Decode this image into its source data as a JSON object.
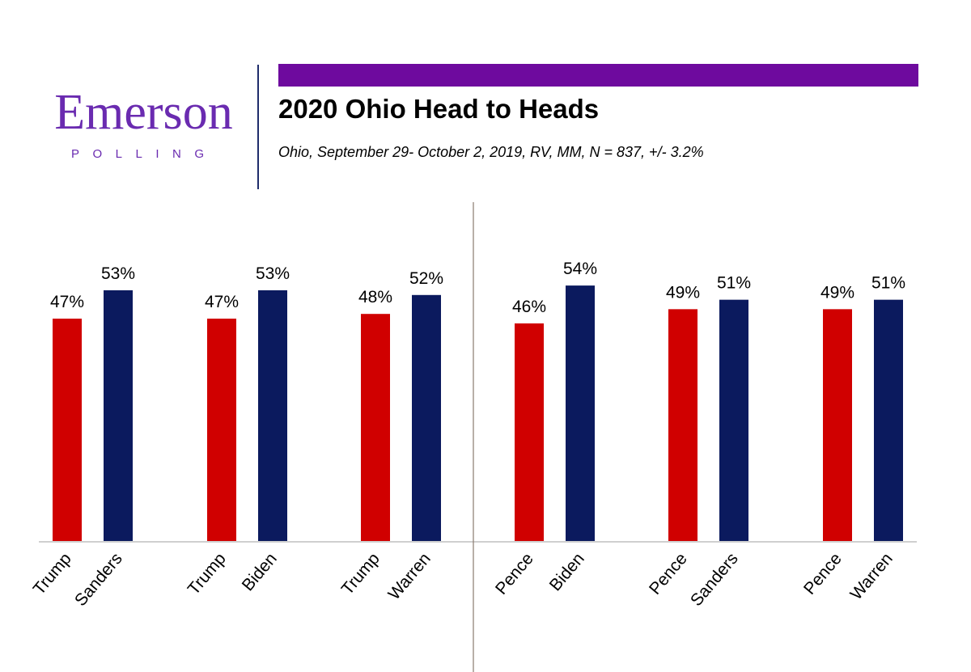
{
  "logo": {
    "name": "Emerson",
    "tagline": "POLLING",
    "color": "#6a2bb0"
  },
  "header": {
    "title": "2020 Ohio Head to Heads",
    "subtitle": "Ohio, September 29- October 2, 2019, RV, MM, N = 837,  +/- 3.2%",
    "accent_color": "#6e0a9e"
  },
  "chart_data": {
    "type": "bar",
    "title": "",
    "ylim": [
      0,
      100
    ],
    "grid": false,
    "legend": "none",
    "colors": {
      "republican": "#d00000",
      "democrat": "#0b1a5e"
    },
    "groups": [
      {
        "bars": [
          {
            "label": "Trump",
            "value": 47,
            "value_label": "47%",
            "party": "republican"
          },
          {
            "label": "Sanders",
            "value": 53,
            "value_label": "53%",
            "party": "democrat"
          }
        ]
      },
      {
        "bars": [
          {
            "label": "Trump",
            "value": 47,
            "value_label": "47%",
            "party": "republican"
          },
          {
            "label": "Biden",
            "value": 53,
            "value_label": "53%",
            "party": "democrat"
          }
        ]
      },
      {
        "bars": [
          {
            "label": "Trump",
            "value": 48,
            "value_label": "48%",
            "party": "republican"
          },
          {
            "label": "Warren",
            "value": 52,
            "value_label": "52%",
            "party": "democrat"
          }
        ]
      },
      {
        "bars": [
          {
            "label": "Pence",
            "value": 46,
            "value_label": "46%",
            "party": "republican"
          },
          {
            "label": "Biden",
            "value": 54,
            "value_label": "54%",
            "party": "democrat"
          }
        ]
      },
      {
        "bars": [
          {
            "label": "Pence",
            "value": 49,
            "value_label": "49%",
            "party": "republican"
          },
          {
            "label": "Sanders",
            "value": 51,
            "value_label": "51%",
            "party": "democrat"
          }
        ]
      },
      {
        "bars": [
          {
            "label": "Pence",
            "value": 49,
            "value_label": "49%",
            "party": "republican"
          },
          {
            "label": "Warren",
            "value": 51,
            "value_label": "51%",
            "party": "democrat"
          }
        ]
      }
    ]
  }
}
